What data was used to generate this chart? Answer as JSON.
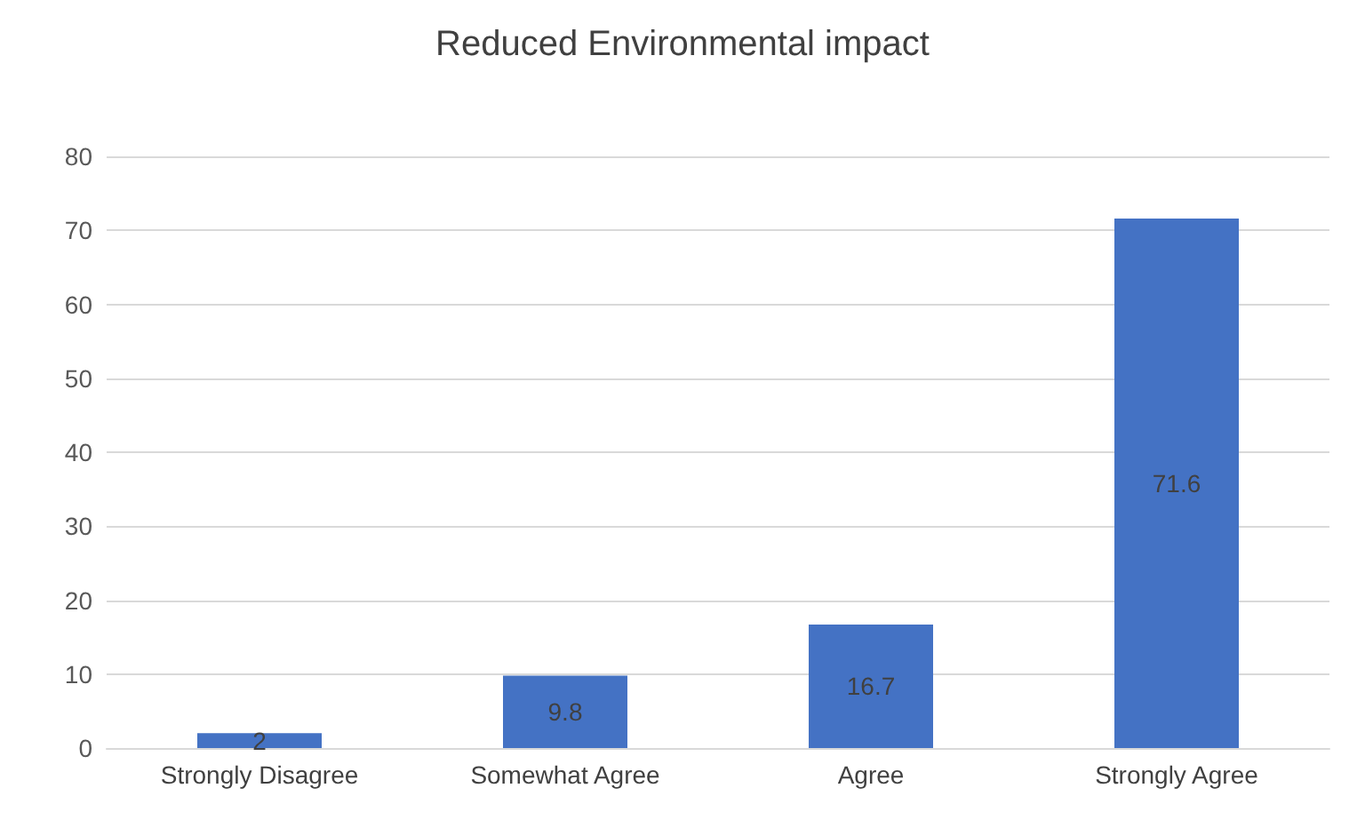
{
  "chart_data": {
    "type": "bar",
    "title": "Reduced Environmental impact",
    "categories": [
      "Strongly Disagree",
      "Somewhat Agree",
      "Agree",
      "Strongly Agree"
    ],
    "values": [
      2,
      9.8,
      16.7,
      71.6
    ],
    "color": "#4472c4",
    "ylim": [
      0,
      80
    ],
    "yticks": [
      0,
      10,
      20,
      30,
      40,
      50,
      60,
      70,
      80
    ],
    "grid": "y",
    "data_labels": true
  }
}
